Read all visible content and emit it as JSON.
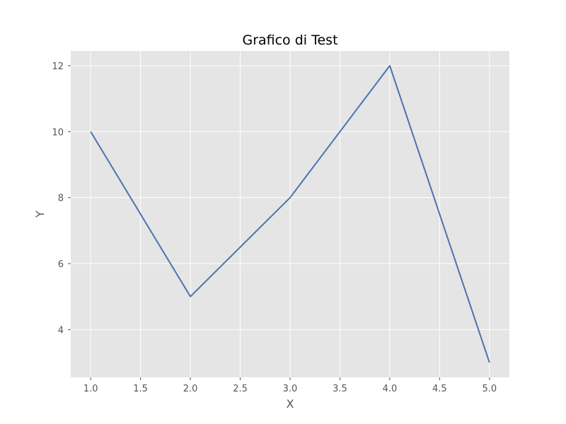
{
  "chart_data": {
    "type": "line",
    "title": "Grafico di Test",
    "xlabel": "X",
    "ylabel": "Y",
    "x": [
      1,
      2,
      3,
      4,
      5
    ],
    "series": [
      {
        "values": [
          10,
          5,
          8,
          12,
          3
        ],
        "color": "#4c72b0"
      }
    ],
    "xlim": [
      0.8,
      5.2
    ],
    "ylim": [
      2.55,
      12.45
    ],
    "xticks": [
      1.0,
      1.5,
      2.0,
      2.5,
      3.0,
      3.5,
      4.0,
      4.5,
      5.0
    ],
    "xtick_labels": [
      "1.0",
      "1.5",
      "2.0",
      "2.5",
      "3.0",
      "3.5",
      "4.0",
      "4.5",
      "5.0"
    ],
    "yticks": [
      4,
      6,
      8,
      10,
      12
    ],
    "ytick_labels": [
      "4",
      "6",
      "8",
      "10",
      "12"
    ],
    "grid": true,
    "background_color": "#e5e5e5"
  }
}
